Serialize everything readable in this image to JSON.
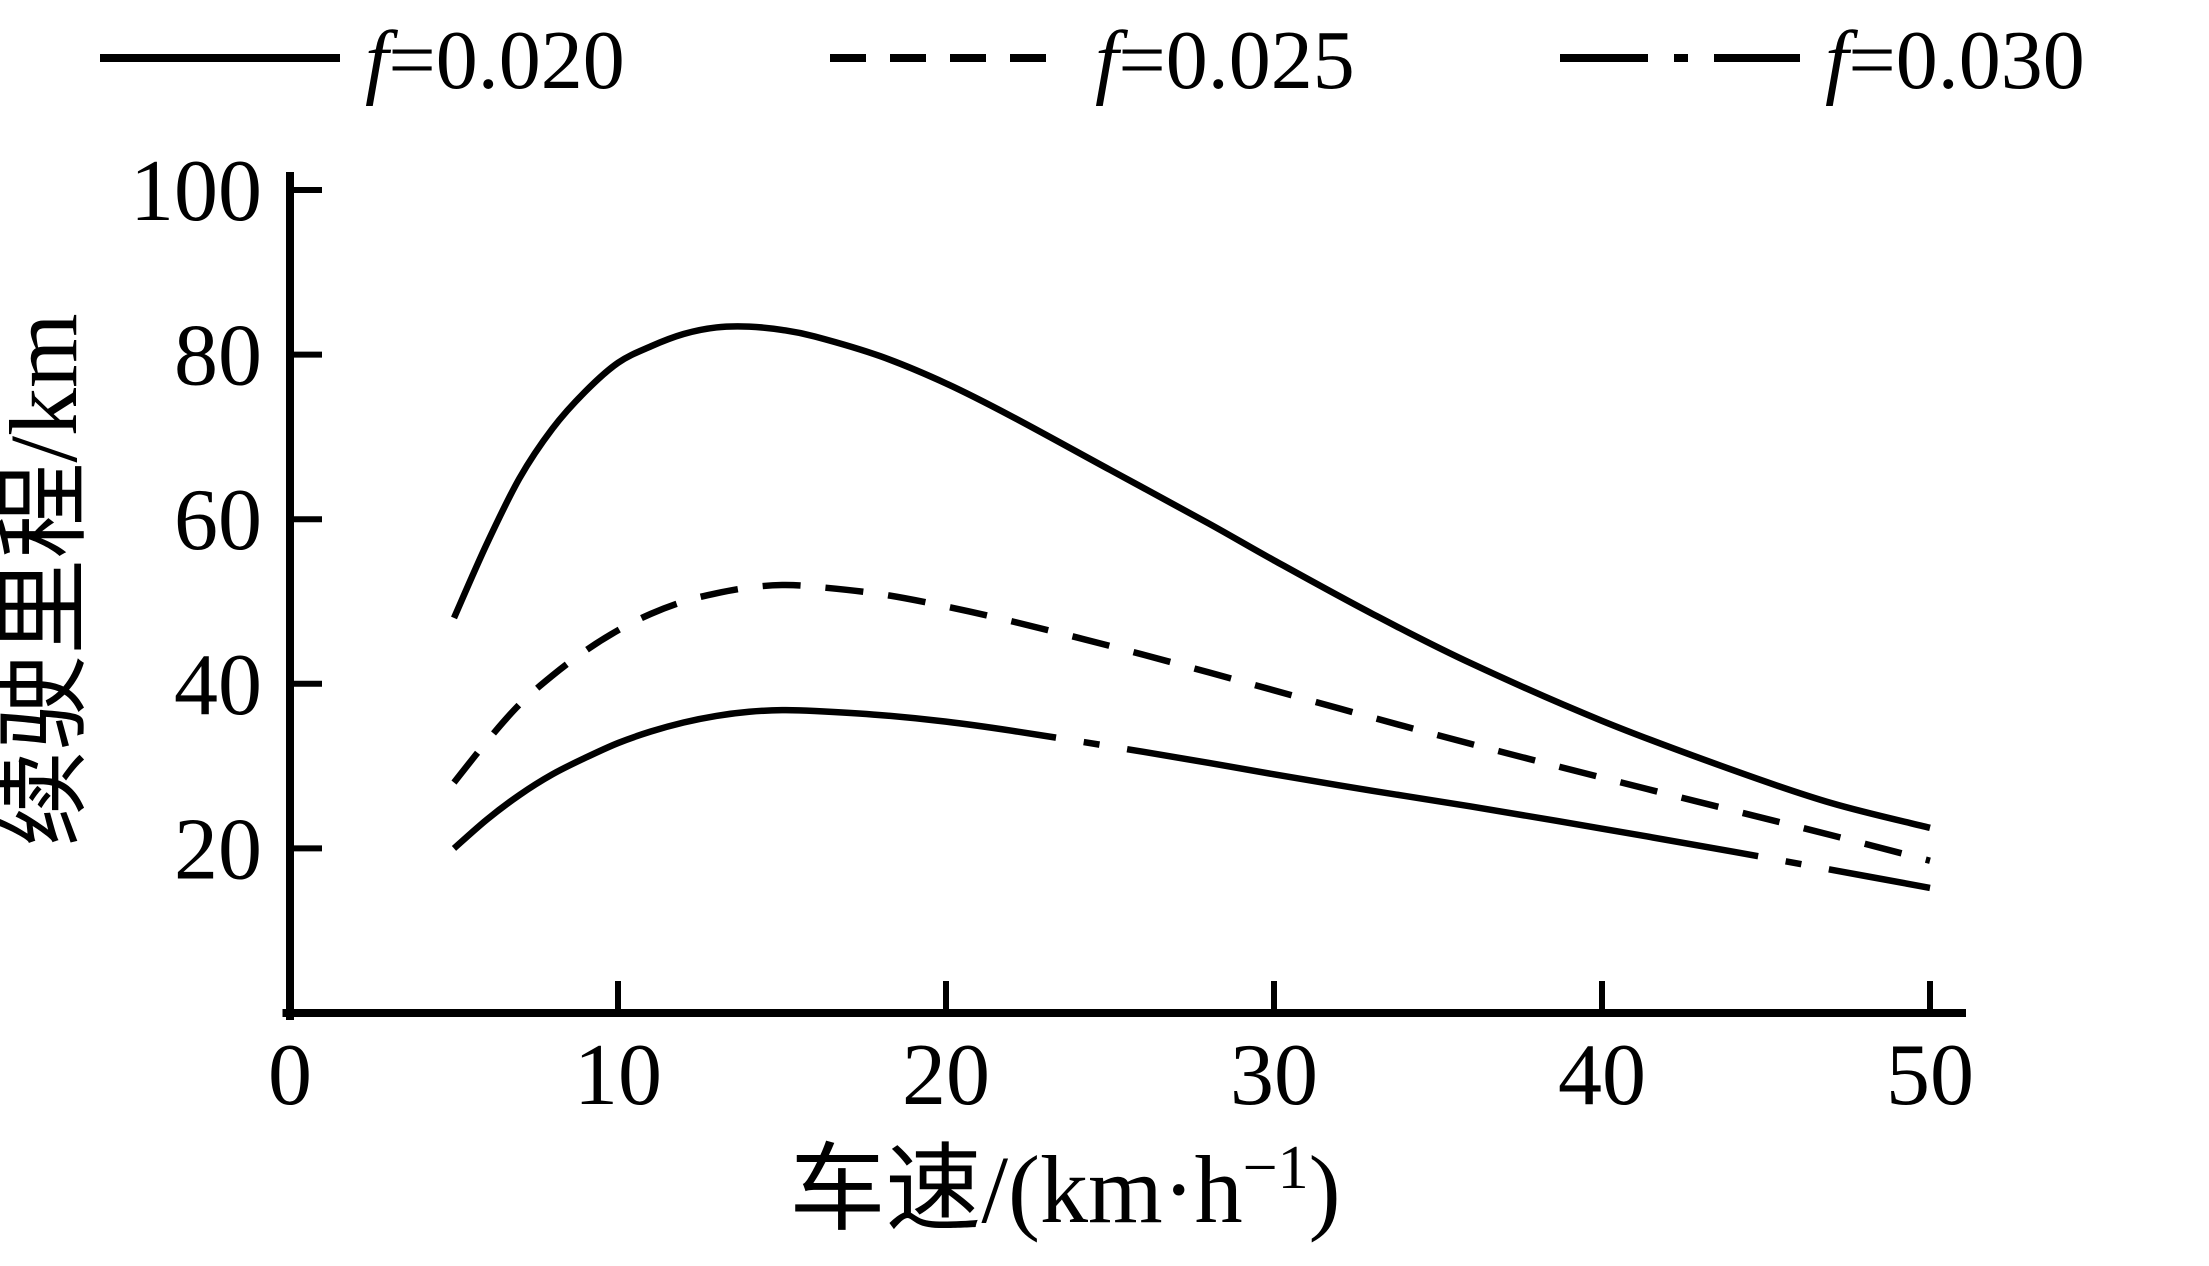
{
  "figure": {
    "background": "#ffffff",
    "line_color": "#000000"
  },
  "chart_data": {
    "type": "line",
    "title": "",
    "xlabel": {
      "pre": "车速/(km·h",
      "sup": "−1",
      "post": ")"
    },
    "ylabel": "续驶里程/km",
    "xlim": [
      0,
      50
    ],
    "ylim": [
      0,
      100
    ],
    "x_ticks": [
      0,
      10,
      20,
      30,
      40,
      50
    ],
    "y_ticks": [
      20,
      40,
      60,
      80,
      100
    ],
    "grid": false,
    "legend_position": "top",
    "x": [
      5,
      6,
      7,
      8,
      9,
      10,
      11,
      12,
      13,
      14,
      15,
      16,
      18,
      20,
      22,
      25,
      28,
      30,
      33,
      36,
      40,
      44,
      47,
      50
    ],
    "series": [
      {
        "name": "f=0.020",
        "style": "solid",
        "y": [
          48,
          57,
          65,
          71,
          75.5,
          79,
          81,
          82.5,
          83.3,
          83.4,
          83,
          82.2,
          79.8,
          76.5,
          72.5,
          66,
          59.5,
          55,
          48.5,
          42.5,
          35.5,
          29.5,
          25.5,
          22.5
        ]
      },
      {
        "name": "f=0.025",
        "style": "dashed",
        "y": [
          28,
          33,
          37.5,
          41,
          44,
          46.5,
          48.5,
          50,
          51,
          51.7,
          52,
          51.8,
          50.9,
          49.4,
          47.6,
          44.6,
          41.4,
          39.2,
          35.9,
          32.7,
          28.6,
          24.6,
          21.6,
          18.5
        ]
      },
      {
        "name": "f=0.030",
        "style": "dashdot",
        "y": [
          20,
          23.5,
          26.5,
          29,
          31,
          32.8,
          34.2,
          35.3,
          36.1,
          36.6,
          36.8,
          36.7,
          36.2,
          35.4,
          34.3,
          32.4,
          30.4,
          29,
          27,
          25.1,
          22.4,
          19.6,
          17.4,
          15.2
        ]
      }
    ]
  }
}
